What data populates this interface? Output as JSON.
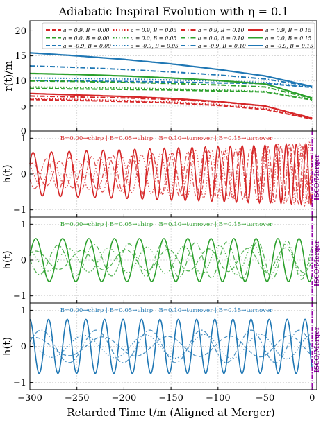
{
  "title": "Adiabatic Inspiral Evolution with η = 0.1",
  "colors": {
    "spin_pos": "#d62728",
    "spin_zero": "#2ca02c",
    "spin_neg": "#1f77b4",
    "merger": "#9400a8",
    "grid": "#cccccc"
  },
  "chart_data": [
    {
      "type": "line",
      "panel": "orbital-radius",
      "ylabel": "r(t)/m",
      "xlim": [
        -300,
        5
      ],
      "ylim": [
        0,
        22
      ],
      "yticks": [
        0,
        5,
        10,
        15,
        20
      ],
      "grid": true,
      "legend_position": "top",
      "legend_columns": 4,
      "series": [
        {
          "name": "a = 0.9, B = 0.00",
          "spin": "pos",
          "style": "dashed",
          "x": [
            -300,
            -250,
            -200,
            -150,
            -100,
            -50,
            0
          ],
          "y": [
            6.3,
            6.1,
            5.9,
            5.6,
            5.1,
            4.3,
            2.4
          ]
        },
        {
          "name": "a = 0.0, B = 0.00",
          "spin": "zero",
          "style": "dashed",
          "x": [
            -300,
            -250,
            -200,
            -150,
            -100,
            -50,
            0
          ],
          "y": [
            8.5,
            8.4,
            8.3,
            8.2,
            8.0,
            7.8,
            6.2
          ]
        },
        {
          "name": "a = -0.9, B = 0.00",
          "spin": "neg",
          "style": "dashed",
          "x": [
            -300,
            -250,
            -200,
            -150,
            -100,
            -50,
            0
          ],
          "y": [
            10.1,
            10.0,
            9.9,
            9.8,
            9.6,
            9.5,
            8.7
          ]
        },
        {
          "name": "a = 0.9, B = 0.05",
          "spin": "pos",
          "style": "dotted",
          "x": [
            -300,
            -250,
            -200,
            -150,
            -100,
            -50,
            0
          ],
          "y": [
            6.5,
            6.3,
            6.1,
            5.8,
            5.3,
            4.5,
            2.5
          ]
        },
        {
          "name": "a = 0.0, B = 0.05",
          "spin": "zero",
          "style": "dotted",
          "x": [
            -300,
            -250,
            -200,
            -150,
            -100,
            -50,
            0
          ],
          "y": [
            8.8,
            8.7,
            8.6,
            8.4,
            8.2,
            7.9,
            6.3
          ]
        },
        {
          "name": "a = -0.9, B = 0.05",
          "spin": "neg",
          "style": "dotted",
          "x": [
            -300,
            -250,
            -200,
            -150,
            -100,
            -50,
            0
          ],
          "y": [
            10.6,
            10.5,
            10.4,
            10.2,
            10.0,
            9.7,
            8.8
          ]
        },
        {
          "name": "a = 0.9, B = 0.10",
          "spin": "pos",
          "style": "dashdot",
          "x": [
            -300,
            -250,
            -200,
            -150,
            -100,
            -50,
            0
          ],
          "y": [
            7.0,
            6.8,
            6.6,
            6.3,
            5.8,
            5.0,
            2.6
          ]
        },
        {
          "name": "a = 0.0, B = 0.10",
          "spin": "zero",
          "style": "dashdot",
          "x": [
            -300,
            -250,
            -200,
            -150,
            -100,
            -50,
            0
          ],
          "y": [
            10.0,
            9.9,
            9.7,
            9.5,
            9.2,
            8.8,
            6.5
          ]
        },
        {
          "name": "a = -0.9, B = 0.10",
          "spin": "neg",
          "style": "dashdot",
          "x": [
            -300,
            -250,
            -200,
            -150,
            -100,
            -50,
            0
          ],
          "y": [
            13.0,
            12.7,
            12.3,
            11.8,
            11.2,
            10.4,
            8.9
          ]
        },
        {
          "name": "a = 0.9, B = 0.15",
          "spin": "pos",
          "style": "solid",
          "x": [
            -300,
            -250,
            -200,
            -150,
            -100,
            -50,
            0
          ],
          "y": [
            7.5,
            7.2,
            6.9,
            6.5,
            5.9,
            5.0,
            2.5
          ]
        },
        {
          "name": "a = 0.0, B = 0.15",
          "spin": "zero",
          "style": "solid",
          "x": [
            -300,
            -250,
            -200,
            -150,
            -100,
            -50,
            0
          ],
          "y": [
            11.5,
            11.3,
            11.0,
            10.6,
            10.1,
            9.4,
            6.6
          ]
        },
        {
          "name": "a = -0.9, B = 0.15",
          "spin": "neg",
          "style": "solid",
          "x": [
            -300,
            -250,
            -200,
            -150,
            -100,
            -50,
            0
          ],
          "y": [
            15.6,
            15.0,
            14.3,
            13.4,
            12.3,
            11.0,
            8.9
          ]
        }
      ]
    },
    {
      "type": "line",
      "panel": "waveform-a0.9",
      "spin": "pos",
      "ylabel": "h(t)",
      "xlim": [
        -300,
        5
      ],
      "ylim": [
        -1.2,
        1.2
      ],
      "yticks": [
        -1,
        0,
        1
      ],
      "grid": true,
      "annotation": "B=0.00→chirp | B=0.05→chirp | B=0.10→turnover | B=0.15→turnover",
      "merger_label": "ISCO/Merger",
      "series": [
        {
          "style": "dashed",
          "amp_start": 0.3,
          "amp_end": 0.85,
          "period_start": 30,
          "period_end": 11,
          "phase": 1.0
        },
        {
          "style": "dotted",
          "amp_start": 0.3,
          "amp_end": 0.9,
          "period_start": 28,
          "period_end": 10,
          "phase": 2.2
        },
        {
          "style": "dashdot",
          "amp_start": 0.4,
          "amp_end": 0.8,
          "period_start": 26,
          "period_end": 12,
          "phase": 3.5
        },
        {
          "style": "solid",
          "amp_start": 0.6,
          "amp_end": 0.85,
          "period_start": 20,
          "period_end": 10,
          "phase": 0.5
        }
      ]
    },
    {
      "type": "line",
      "panel": "waveform-a0.0",
      "spin": "zero",
      "ylabel": "h(t)",
      "xlim": [
        -300,
        5
      ],
      "ylim": [
        -1.2,
        1.2
      ],
      "yticks": [
        -1,
        0,
        1
      ],
      "grid": true,
      "annotation": "B=0.00→chirp | B=0.05→chirp | B=0.10→turnover | B=0.15→turnover",
      "merger_label": "ISCO/Merger",
      "series": [
        {
          "style": "dashed",
          "amp_start": 0.25,
          "amp_end": 0.35,
          "period_start": 50,
          "period_end": 38,
          "phase": 0.8
        },
        {
          "style": "dotted",
          "amp_start": 0.3,
          "amp_end": 0.45,
          "period_start": 45,
          "period_end": 33,
          "phase": 2.0
        },
        {
          "style": "dashdot",
          "amp_start": 0.4,
          "amp_end": 0.55,
          "period_start": 40,
          "period_end": 30,
          "phase": 3.1
        },
        {
          "style": "solid",
          "amp_start": 0.6,
          "amp_end": 0.6,
          "period_start": 29,
          "period_end": 22,
          "phase": 0.2
        }
      ]
    },
    {
      "type": "line",
      "panel": "waveform-a-0.9",
      "spin": "neg",
      "ylabel": "h(t)",
      "xlim": [
        -300,
        5
      ],
      "ylim": [
        -1.2,
        1.2
      ],
      "yticks": [
        -1,
        0,
        1
      ],
      "grid": true,
      "annotation": "B=0.00→chirp | B=0.05→chirp | B=0.10→turnover | B=0.15→turnover",
      "merger_label": "ISCO/Merger",
      "series": [
        {
          "style": "dashed",
          "amp_start": 0.25,
          "amp_end": 0.3,
          "period_start": 75,
          "period_end": 60,
          "phase": 1.2
        },
        {
          "style": "dotted",
          "amp_start": 0.3,
          "amp_end": 0.35,
          "period_start": 70,
          "period_end": 55,
          "phase": 2.6
        },
        {
          "style": "dashdot",
          "amp_start": 0.45,
          "amp_end": 0.45,
          "period_start": 60,
          "period_end": 50,
          "phase": 0.3
        },
        {
          "style": "solid",
          "amp_start": 0.75,
          "amp_end": 0.75,
          "period_start": 20,
          "period_end": 19,
          "phase": 1.6
        }
      ]
    }
  ],
  "x_axis": {
    "xlabel": "Retarded Time t/m (Aligned at Merger)",
    "ticks": [
      -300,
      -250,
      -200,
      -150,
      -100,
      -50,
      0
    ],
    "tick_labels": [
      "−300",
      "−250",
      "−200",
      "−150",
      "−100",
      "−50",
      "0"
    ]
  }
}
